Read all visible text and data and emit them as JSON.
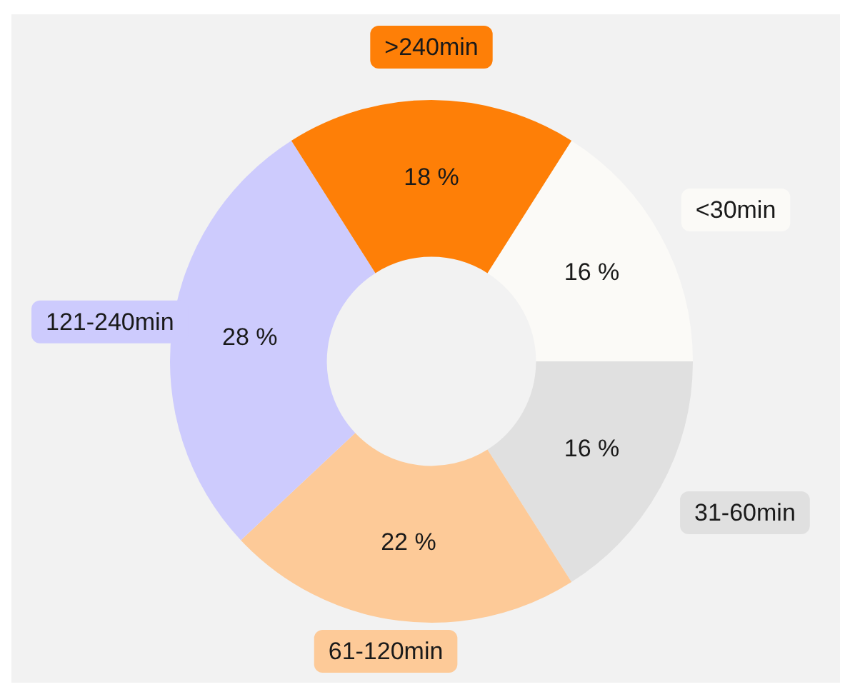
{
  "chart_data": {
    "type": "donut",
    "categories": [
      "<30min",
      "31-60min",
      "61-120min",
      "121-240min",
      ">240min"
    ],
    "values": [
      16,
      16,
      22,
      28,
      18
    ],
    "value_labels": [
      "16 %",
      "16 %",
      "22 %",
      "28 %",
      "18 %"
    ],
    "colors": [
      "#fbfaf7",
      "#e0e0e0",
      "#fdca98",
      "#cdcbfd",
      "#fe7f07"
    ],
    "legend": false
  }
}
